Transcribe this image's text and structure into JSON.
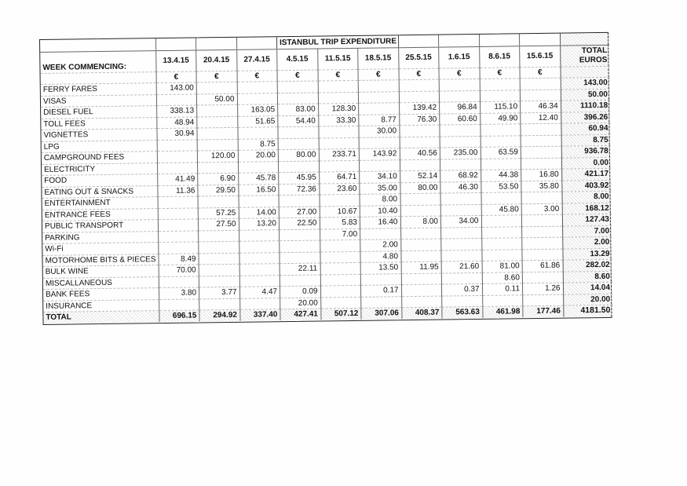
{
  "title": "ISTANBUL TRIP EXPENDITURE",
  "week_label": "WEEK COMMENCING:",
  "currency": "€",
  "total_header_line1": "TOTAL",
  "total_header_line2": "EUROS",
  "weeks": [
    "13.4.15",
    "20.4.15",
    "27.4.15",
    "4.5.15",
    "11.5.15",
    "18.5.15",
    "25.5.15",
    "1.6.15",
    "8.6.15",
    "15.6.15"
  ],
  "rows": [
    {
      "label": "FERRY FARES",
      "values": [
        "143.00",
        "",
        "",
        "",
        "",
        "",
        "",
        "",
        "",
        ""
      ],
      "total": "143.00"
    },
    {
      "label": "VISAS",
      "values": [
        "",
        "50.00",
        "",
        "",
        "",
        "",
        "",
        "",
        "",
        ""
      ],
      "total": "50.00"
    },
    {
      "label": "DIESEL FUEL",
      "values": [
        "338.13",
        "",
        "163.05",
        "83.00",
        "128.30",
        "",
        "139.42",
        "96.84",
        "115.10",
        "46.34"
      ],
      "total": "1110.18"
    },
    {
      "label": "TOLL FEES",
      "values": [
        "48.94",
        "",
        "51.65",
        "54.40",
        "33.30",
        "8.77",
        "76.30",
        "60.60",
        "49.90",
        "12.40"
      ],
      "total": "396.26"
    },
    {
      "label": "VIGNETTES",
      "values": [
        "30.94",
        "",
        "",
        "",
        "",
        "30.00",
        "",
        "",
        "",
        ""
      ],
      "total": "60.94"
    },
    {
      "label": "LPG",
      "values": [
        "",
        "",
        "8.75",
        "",
        "",
        "",
        "",
        "",
        "",
        ""
      ],
      "total": "8.75"
    },
    {
      "label": "CAMPGROUND FEES",
      "values": [
        "",
        "120.00",
        "20.00",
        "80.00",
        "233.71",
        "143.92",
        "40.56",
        "235.00",
        "63.59",
        ""
      ],
      "total": "936.78"
    },
    {
      "label": "ELECTRICITY",
      "values": [
        "",
        "",
        "",
        "",
        "",
        "",
        "",
        "",
        "",
        ""
      ],
      "total": "0.00"
    },
    {
      "label": "FOOD",
      "values": [
        "41.49",
        "6.90",
        "45.78",
        "45.95",
        "64.71",
        "34.10",
        "52.14",
        "68.92",
        "44.38",
        "16.80"
      ],
      "total": "421.17"
    },
    {
      "label": "EATING OUT & SNACKS",
      "values": [
        "11.36",
        "29.50",
        "16.50",
        "72.36",
        "23.60",
        "35.00",
        "80.00",
        "46.30",
        "53.50",
        "35.80"
      ],
      "total": "403.92"
    },
    {
      "label": "ENTERTAINMENT",
      "values": [
        "",
        "",
        "",
        "",
        "",
        "8.00",
        "",
        "",
        "",
        ""
      ],
      "total": "8.00"
    },
    {
      "label": "ENTRANCE FEES",
      "values": [
        "",
        "57.25",
        "14.00",
        "27.00",
        "10.67",
        "10.40",
        "",
        "",
        "45.80",
        "3.00"
      ],
      "total": "168.12"
    },
    {
      "label": "PUBLIC TRANSPORT",
      "values": [
        "",
        "27.50",
        "13.20",
        "22.50",
        "5.83",
        "16.40",
        "8.00",
        "34.00",
        "",
        ""
      ],
      "total": "127.43"
    },
    {
      "label": "PARKING",
      "values": [
        "",
        "",
        "",
        "",
        "7.00",
        "",
        "",
        "",
        "",
        ""
      ],
      "total": "7.00"
    },
    {
      "label": "Wi-Fi",
      "values": [
        "",
        "",
        "",
        "",
        "",
        "2.00",
        "",
        "",
        "",
        ""
      ],
      "total": "2.00"
    },
    {
      "label": "MOTORHOME BITS & PIECES",
      "values": [
        "8.49",
        "",
        "",
        "",
        "",
        "4.80",
        "",
        "",
        "",
        ""
      ],
      "total": "13.29"
    },
    {
      "label": "BULK WINE",
      "values": [
        "70.00",
        "",
        "",
        "22.11",
        "",
        "13.50",
        "11.95",
        "21.60",
        "81.00",
        "61.86"
      ],
      "total": "282.02"
    },
    {
      "label": "MISCALLANEOUS",
      "values": [
        "",
        "",
        "",
        "",
        "",
        "",
        "",
        "",
        "8.60",
        ""
      ],
      "total": "8.60"
    },
    {
      "label": "BANK FEES",
      "values": [
        "3.80",
        "3.77",
        "4.47",
        "0.09",
        "",
        "0.17",
        "",
        "0.37",
        "0.11",
        "1.26"
      ],
      "total": "14.04"
    },
    {
      "label": "INSURANCE",
      "values": [
        "",
        "",
        "",
        "20.00",
        "",
        "",
        "",
        "",
        "",
        ""
      ],
      "total": "20.00"
    }
  ],
  "total_row": {
    "label": "TOTAL",
    "values": [
      "696.15",
      "294.92",
      "337.40",
      "427.41",
      "507.12",
      "307.06",
      "408.37",
      "563.63",
      "461.98",
      "177.46"
    ],
    "grand_total": "4181.50"
  }
}
